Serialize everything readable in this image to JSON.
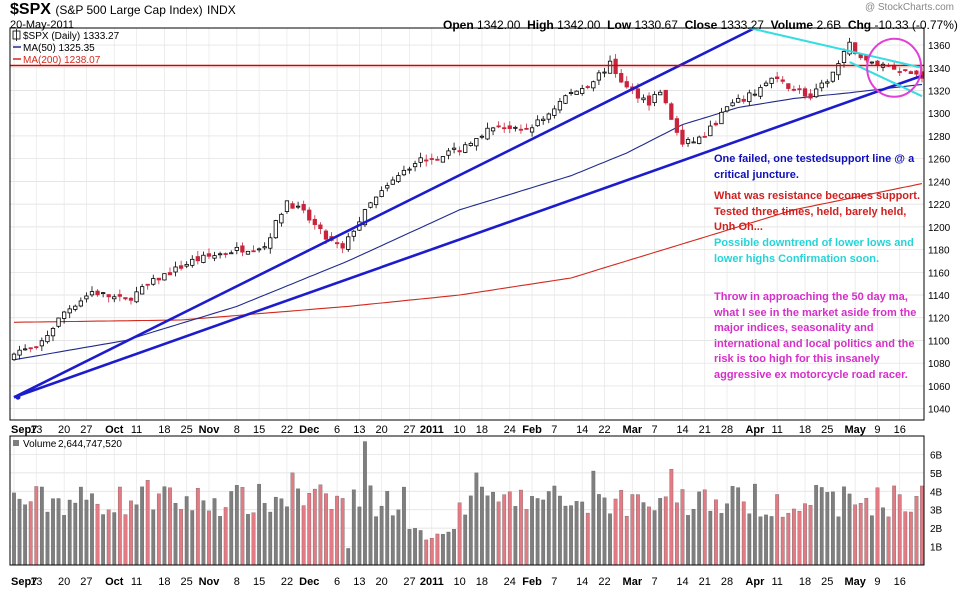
{
  "header": {
    "ticker": "$SPX",
    "name": "(S&P 500 Large Cap Index)",
    "exchange": "INDX",
    "date": "20-May-2011",
    "copyright": "@ StockCharts.com",
    "open_label": "Open",
    "open": "1342.00",
    "high_label": "High",
    "high": "1342.00",
    "low_label": "Low",
    "low": "1330.67",
    "close_label": "Close",
    "close": "1333.27",
    "volume_label": "Volume",
    "volume": "2.6B",
    "chg_label": "Chg",
    "chg": "-10.33 (-0.77%)",
    "chg_marker": "▼"
  },
  "legend": {
    "price": "$SPX (Daily) 1333.27",
    "ma50": "MA(50) 1325.35",
    "ma200": "MA(200) 1238.07",
    "volume": "Volume 2,644,747,520"
  },
  "colors": {
    "up_candle": "#000000",
    "down_candle": "#c8243c",
    "vol_up": "#7f7f7f",
    "vol_down": "#e37b85",
    "ma50": "#1f2a8c",
    "ma200": "#d22a1f",
    "trendline": "#1c1ccc",
    "resistance": "#d50000",
    "downtrend": "#33dde0",
    "circle": "#e23fd5"
  },
  "annotations": {
    "blue": "One failed, one testedsupport line @ a critical juncture.",
    "red": "What was resistance becomes support. Tested three times, held, barely held, Unh Oh...",
    "cyan": "Possible downtrend of lower lows and lower highs Confirmation soon.",
    "magenta": "Throw in approaching the 50 day ma, what I see in the market aside from the major indices, seasonality and international and local politics and the risk is too high for this insanely aggressive ex motorcycle road racer."
  },
  "chart_data": [
    {
      "type": "candlestick",
      "title": "$SPX (S&P 500 Large Cap Index) INDX",
      "date_range": [
        "2010-09-07",
        "2011-05-20"
      ],
      "ylim": [
        1030,
        1375
      ],
      "y_ticks": [
        1040,
        1060,
        1080,
        1100,
        1120,
        1140,
        1160,
        1180,
        1200,
        1220,
        1240,
        1260,
        1280,
        1300,
        1320,
        1340,
        1360
      ],
      "x_ticks": [
        "Sep7",
        "13",
        "20",
        "27",
        "Oct",
        "11",
        "18",
        "25",
        "Nov",
        "8",
        "15",
        "22",
        "Dec",
        "6",
        "13",
        "20",
        "27",
        "2011",
        "10",
        "18",
        "24",
        "Feb",
        "7",
        "14",
        "22",
        "Mar",
        "7",
        "14",
        "21",
        "28",
        "Apr",
        "11",
        "18",
        "25",
        "May",
        "9",
        "16"
      ],
      "x_tick_bold": [
        "Sep7",
        "Oct",
        "Nov",
        "Dec",
        "2011",
        "Feb",
        "Mar",
        "Apr",
        "May"
      ],
      "close_trajectory": [
        [
          0,
          1091
        ],
        [
          4,
          1092
        ],
        [
          9,
          1125
        ],
        [
          14,
          1143
        ],
        [
          20,
          1135
        ],
        [
          26,
          1155
        ],
        [
          32,
          1170
        ],
        [
          40,
          1180
        ],
        [
          45,
          1183
        ],
        [
          49,
          1223
        ],
        [
          52,
          1212
        ],
        [
          56,
          1190
        ],
        [
          59,
          1180
        ],
        [
          61,
          1198
        ],
        [
          64,
          1220
        ],
        [
          68,
          1240
        ],
        [
          72,
          1258
        ],
        [
          76,
          1262
        ],
        [
          80,
          1268
        ],
        [
          83,
          1280
        ],
        [
          87,
          1290
        ],
        [
          91,
          1283
        ],
        [
          95,
          1295
        ],
        [
          99,
          1315
        ],
        [
          103,
          1325
        ],
        [
          107,
          1343
        ],
        [
          110,
          1322
        ],
        [
          114,
          1310
        ],
        [
          116,
          1320
        ],
        [
          118,
          1295
        ],
        [
          120,
          1272
        ],
        [
          124,
          1280
        ],
        [
          128,
          1305
        ],
        [
          132,
          1315
        ],
        [
          136,
          1330
        ],
        [
          141,
          1320
        ],
        [
          143,
          1313
        ],
        [
          147,
          1335
        ],
        [
          150,
          1360
        ],
        [
          153,
          1345
        ],
        [
          157,
          1342
        ],
        [
          160,
          1337
        ],
        [
          163,
          1333
        ]
      ],
      "ma50": [
        [
          0,
          1083
        ],
        [
          20,
          1100
        ],
        [
          40,
          1130
        ],
        [
          60,
          1170
        ],
        [
          80,
          1215
        ],
        [
          100,
          1245
        ],
        [
          110,
          1265
        ],
        [
          120,
          1290
        ],
        [
          130,
          1305
        ],
        [
          140,
          1313
        ],
        [
          150,
          1318
        ],
        [
          163,
          1325.35
        ]
      ],
      "ma200": [
        [
          0,
          1116
        ],
        [
          30,
          1118
        ],
        [
          60,
          1130
        ],
        [
          80,
          1140
        ],
        [
          100,
          1155
        ],
        [
          120,
          1185
        ],
        [
          140,
          1215
        ],
        [
          163,
          1238.07
        ]
      ],
      "lines": [
        {
          "kind": "support-failed",
          "from": [
            0,
            1050
          ],
          "to": [
            133,
            1375
          ]
        },
        {
          "kind": "support-tested",
          "from": [
            0,
            1050
          ],
          "to": [
            163,
            1333
          ]
        },
        {
          "kind": "resistance-support",
          "y": 1342
        },
        {
          "kind": "downtrend-upper",
          "from": [
            132,
            1375
          ],
          "to": [
            163,
            1340
          ]
        },
        {
          "kind": "downtrend-lower",
          "from": [
            150,
            1345
          ],
          "to": [
            163,
            1315
          ]
        }
      ],
      "total_sessions": 164
    },
    {
      "type": "bar",
      "title": "Volume",
      "ylim": [
        0,
        7
      ],
      "y_unit": "B",
      "y_ticks": [
        "1B",
        "2B",
        "3B",
        "4B",
        "5B",
        "6B"
      ],
      "last_value": "2,644,747,520"
    }
  ]
}
